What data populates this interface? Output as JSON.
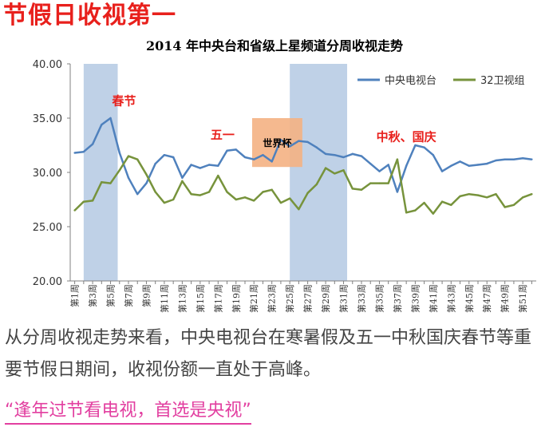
{
  "headline": "节假日收视第一",
  "body_text": "从分周收视走势来看，中央电视台在寒暑假及五一中秋国庆春节等重要节假日期间，收视份额一直处于高峰。",
  "slogan": "“逢年过节看电视，首选是央视”",
  "chart_data": {
    "type": "line",
    "title": "2014 年中央台和省级上星频道分周收视走势",
    "x": [
      1,
      2,
      3,
      4,
      5,
      6,
      7,
      8,
      9,
      10,
      11,
      12,
      13,
      14,
      15,
      16,
      17,
      18,
      19,
      20,
      21,
      22,
      23,
      24,
      25,
      26,
      27,
      28,
      29,
      30,
      31,
      32,
      33,
      34,
      35,
      36,
      37,
      38,
      39,
      40,
      41,
      42,
      43,
      44,
      45,
      46,
      47,
      48,
      49,
      50,
      51,
      52
    ],
    "x_tick_labels": [
      "第1周",
      "第3周",
      "第5周",
      "第7周",
      "第9周",
      "第11周",
      "第13周",
      "第15周",
      "第17周",
      "第19周",
      "第21周",
      "第23周",
      "第25周",
      "第27周",
      "第29周",
      "第31周",
      "第33周",
      "第35周",
      "第37周",
      "第39周",
      "第41周",
      "第43周",
      "第45周",
      "第47周",
      "第49周",
      "第51周"
    ],
    "ylim": [
      20,
      40
    ],
    "y_ticks": [
      "20.00",
      "25.00",
      "30.00",
      "35.00",
      "40.00"
    ],
    "grid": false,
    "legend_position": "top-right",
    "series": [
      {
        "name": "中央电视台",
        "color": "#4f81bd",
        "values": [
          31.8,
          31.9,
          32.6,
          34.4,
          35.0,
          31.8,
          29.5,
          28.0,
          29.0,
          30.8,
          31.6,
          31.4,
          29.5,
          30.7,
          30.4,
          30.7,
          30.6,
          32.0,
          32.1,
          31.4,
          31.2,
          31.6,
          31.0,
          33.0,
          32.4,
          32.9,
          32.8,
          32.3,
          31.7,
          31.6,
          31.4,
          31.7,
          31.5,
          30.8,
          30.1,
          30.7,
          28.2,
          30.6,
          32.5,
          32.3,
          31.6,
          30.1,
          30.6,
          31.0,
          30.6,
          30.7,
          30.8,
          31.1,
          31.2,
          31.2,
          31.3,
          31.2
        ]
      },
      {
        "name": "32卫视组",
        "color": "#77933c",
        "values": [
          26.5,
          27.3,
          27.4,
          29.1,
          29.0,
          30.2,
          31.5,
          31.2,
          29.8,
          28.2,
          27.2,
          27.5,
          29.2,
          28.0,
          27.9,
          28.2,
          29.7,
          28.2,
          27.5,
          27.7,
          27.4,
          28.2,
          28.4,
          27.2,
          27.6,
          26.6,
          28.1,
          28.9,
          30.4,
          29.9,
          30.2,
          28.5,
          28.4,
          29.0,
          29.0,
          29.0,
          31.2,
          26.3,
          26.5,
          27.2,
          26.2,
          27.3,
          27.0,
          27.8,
          28.0,
          27.9,
          27.7,
          28.0,
          26.8,
          27.0,
          27.7,
          28.0
        ]
      }
    ],
    "shaded_periods": [
      {
        "from_week": 2.0,
        "to_week": 5.8,
        "color": "#b8cce4"
      },
      {
        "from_week": 25.0,
        "to_week": 31.4,
        "color": "#b8cce4"
      }
    ],
    "highlight_box": {
      "from_week": 20.8,
      "to_week": 26.4,
      "from_value": 30.5,
      "to_value": 35.0,
      "color": "#f4b183",
      "label": "世界杯"
    },
    "annotations": [
      {
        "text": "春节",
        "week": 6.5,
        "value": 36.2,
        "color": "#e8201c"
      },
      {
        "text": "五一",
        "week": 17.5,
        "value": 33.1,
        "color": "#e8201c"
      },
      {
        "text": "中秋、国庆",
        "week": 38.0,
        "value": 32.9,
        "color": "#e8201c"
      }
    ]
  }
}
